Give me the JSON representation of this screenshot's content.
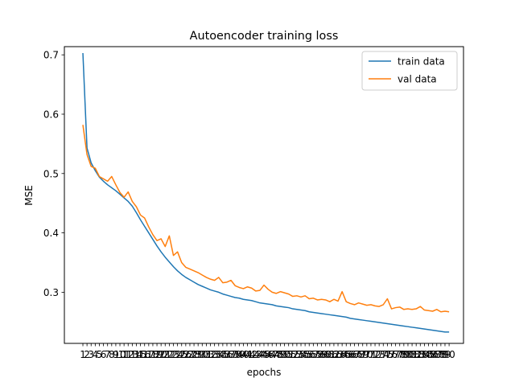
{
  "chart_data": {
    "type": "line",
    "title": "Autoencoder training loss",
    "xlabel": "epochs",
    "ylabel": "MSE",
    "xlim": [
      -3.5,
      93.5
    ],
    "ylim": [
      0.2138,
      0.7138
    ],
    "yticks": [
      0.3,
      0.4,
      0.5,
      0.6,
      0.7
    ],
    "ytick_labels": [
      "0.3",
      "0.4",
      "0.5",
      "0.6",
      "0.7"
    ],
    "xticks": [
      1,
      2,
      3,
      4,
      5,
      6,
      7,
      8,
      9,
      10,
      11,
      12,
      13,
      14,
      15,
      16,
      17,
      18,
      19,
      20,
      21,
      22,
      23,
      24,
      25,
      26,
      27,
      28,
      29,
      30,
      31,
      32,
      33,
      34,
      35,
      36,
      37,
      38,
      39,
      40,
      41,
      42,
      43,
      44,
      45,
      46,
      47,
      48,
      49,
      50,
      51,
      52,
      53,
      54,
      55,
      56,
      57,
      58,
      59,
      60,
      61,
      62,
      63,
      64,
      65,
      66,
      67,
      68,
      69,
      70,
      71,
      72,
      73,
      74,
      75,
      76,
      77,
      78,
      79,
      80,
      81,
      82,
      83,
      84,
      85,
      86,
      87,
      88,
      89,
      90
    ],
    "xtick_labels": [
      "1",
      "2",
      "3",
      "4",
      "5",
      "6",
      "7",
      "8",
      "9",
      "10",
      "11",
      "12",
      "13",
      "14",
      "15",
      "16",
      "17",
      "18",
      "19",
      "20",
      "21",
      "22",
      "23",
      "24",
      "25",
      "26",
      "27",
      "28",
      "29",
      "30",
      "31",
      "32",
      "33",
      "34",
      "35",
      "36",
      "37",
      "38",
      "39",
      "40",
      "41",
      "42",
      "43",
      "44",
      "45",
      "46",
      "47",
      "48",
      "49",
      "50",
      "51",
      "52",
      "53",
      "54",
      "55",
      "56",
      "57",
      "58",
      "59",
      "60",
      "61",
      "62",
      "63",
      "64",
      "65",
      "66",
      "67",
      "68",
      "69",
      "70",
      "71",
      "72",
      "73",
      "74",
      "75",
      "76",
      "77",
      "78",
      "79",
      "80",
      "81",
      "82",
      "83",
      "84",
      "85",
      "86",
      "87",
      "88",
      "89",
      "90"
    ],
    "grid": false,
    "legend_position": "top-right",
    "x": [
      1,
      2,
      3,
      4,
      5,
      6,
      7,
      8,
      9,
      10,
      11,
      12,
      13,
      14,
      15,
      16,
      17,
      18,
      19,
      20,
      21,
      22,
      23,
      24,
      25,
      26,
      27,
      28,
      29,
      30,
      31,
      32,
      33,
      34,
      35,
      36,
      37,
      38,
      39,
      40,
      41,
      42,
      43,
      44,
      45,
      46,
      47,
      48,
      49,
      50,
      51,
      52,
      53,
      54,
      55,
      56,
      57,
      58,
      59,
      60,
      61,
      62,
      63,
      64,
      65,
      66,
      67,
      68,
      69,
      70,
      71,
      72,
      73,
      74,
      75,
      76,
      77,
      78,
      79,
      80,
      81,
      82,
      83,
      84,
      85,
      86,
      87,
      88,
      89,
      90
    ],
    "series": [
      {
        "name": "train data",
        "color": "#1f77b4",
        "values": [
          0.703,
          0.543,
          0.518,
          0.505,
          0.494,
          0.487,
          0.481,
          0.476,
          0.471,
          0.465,
          0.459,
          0.453,
          0.445,
          0.434,
          0.422,
          0.411,
          0.4,
          0.389,
          0.378,
          0.368,
          0.359,
          0.351,
          0.343,
          0.336,
          0.33,
          0.325,
          0.321,
          0.317,
          0.313,
          0.31,
          0.307,
          0.304,
          0.302,
          0.3,
          0.297,
          0.295,
          0.293,
          0.291,
          0.29,
          0.288,
          0.287,
          0.286,
          0.284,
          0.282,
          0.281,
          0.28,
          0.279,
          0.277,
          0.276,
          0.275,
          0.274,
          0.272,
          0.271,
          0.27,
          0.269,
          0.267,
          0.266,
          0.265,
          0.264,
          0.263,
          0.262,
          0.261,
          0.26,
          0.259,
          0.258,
          0.256,
          0.255,
          0.254,
          0.253,
          0.252,
          0.251,
          0.25,
          0.249,
          0.248,
          0.247,
          0.246,
          0.245,
          0.244,
          0.243,
          0.242,
          0.241,
          0.24,
          0.239,
          0.238,
          0.237,
          0.236,
          0.235,
          0.234,
          0.233,
          0.233
        ]
      },
      {
        "name": "val data",
        "color": "#ff7f0e",
        "values": [
          0.582,
          0.532,
          0.512,
          0.509,
          0.495,
          0.491,
          0.487,
          0.495,
          0.481,
          0.468,
          0.46,
          0.469,
          0.453,
          0.444,
          0.43,
          0.425,
          0.41,
          0.397,
          0.387,
          0.39,
          0.377,
          0.395,
          0.362,
          0.368,
          0.35,
          0.342,
          0.339,
          0.336,
          0.333,
          0.329,
          0.325,
          0.322,
          0.32,
          0.325,
          0.316,
          0.317,
          0.32,
          0.311,
          0.308,
          0.306,
          0.309,
          0.307,
          0.302,
          0.303,
          0.312,
          0.305,
          0.3,
          0.298,
          0.301,
          0.299,
          0.297,
          0.293,
          0.294,
          0.292,
          0.294,
          0.289,
          0.29,
          0.287,
          0.288,
          0.287,
          0.284,
          0.288,
          0.285,
          0.301,
          0.284,
          0.281,
          0.279,
          0.282,
          0.28,
          0.278,
          0.279,
          0.277,
          0.276,
          0.279,
          0.289,
          0.272,
          0.274,
          0.275,
          0.271,
          0.272,
          0.271,
          0.272,
          0.276,
          0.27,
          0.269,
          0.268,
          0.271,
          0.267,
          0.268,
          0.267
        ]
      }
    ]
  }
}
